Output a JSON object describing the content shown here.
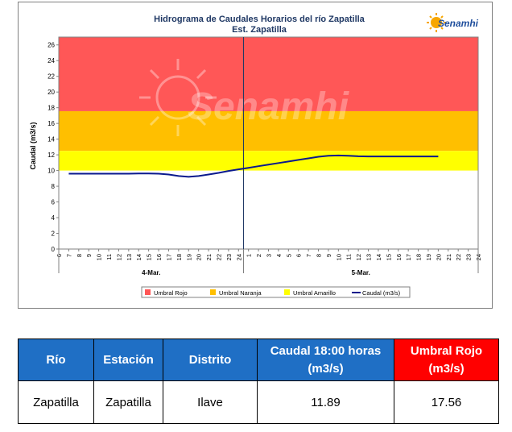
{
  "chart_data": {
    "type": "line",
    "title": "Hidrograma de Caudales Horarios del río Zapatilla",
    "subtitle": "Est. Zapatilla",
    "logo_text": "Senamhi",
    "watermark_text": "Senamhi",
    "ylabel": "Caudal  (m3/s)",
    "ylim": [
      0,
      27
    ],
    "yticks": [
      0,
      2,
      4,
      6,
      8,
      10,
      12,
      14,
      16,
      18,
      20,
      22,
      24,
      26
    ],
    "x_tick_labels": [
      "6",
      "7",
      "8",
      "9",
      "10",
      "11",
      "12",
      "13",
      "14",
      "15",
      "16",
      "17",
      "18",
      "19",
      "20",
      "21",
      "22",
      "23",
      "24",
      "1",
      "2",
      "3",
      "4",
      "5",
      "6",
      "7",
      "8",
      "9",
      "10",
      "11",
      "12",
      "13",
      "14",
      "15",
      "16",
      "17",
      "18",
      "19",
      "20",
      "21",
      "22",
      "23",
      "24"
    ],
    "day_labels": [
      "4-Mar.",
      "5-Mar."
    ],
    "thresholds": {
      "amarillo": 10,
      "naranja": 12.5,
      "rojo": 17.56,
      "max": 27
    },
    "colors": {
      "rojo": "#ff5757",
      "naranja": "#ffbf00",
      "amarillo": "#ffff00",
      "caudal": "#0a1a8c",
      "table_header": "#1f6fc5",
      "table_header_red": "#ff0000"
    },
    "legend": [
      "Umbral Rojo",
      "Umbral Naranja",
      "Umbral Amarillo",
      "Caudal (m3/s)"
    ],
    "legend_position": "bottom",
    "series": [
      {
        "name": "Caudal (m3/s)",
        "values": [
          9.6,
          9.6,
          9.6,
          9.6,
          9.6,
          9.6,
          9.6,
          9.62,
          9.62,
          9.6,
          9.5,
          9.3,
          9.2,
          9.3,
          9.5,
          9.7,
          9.95,
          10.15,
          10.35,
          10.55,
          10.75,
          10.95,
          11.15,
          11.35,
          11.55,
          11.75,
          11.88,
          11.92,
          11.89,
          11.82,
          11.8,
          11.8,
          11.8,
          11.8,
          11.8,
          11.8,
          11.8,
          11.8
        ]
      }
    ]
  },
  "table": {
    "headers": [
      "Río",
      "Estación",
      "Distrito",
      "Caudal  18:00 horas (m3/s)",
      "Umbral Rojo (m3/s)"
    ],
    "row": [
      "Zapatilla",
      "Zapatilla",
      "Ilave",
      "11.89",
      "17.56"
    ]
  }
}
